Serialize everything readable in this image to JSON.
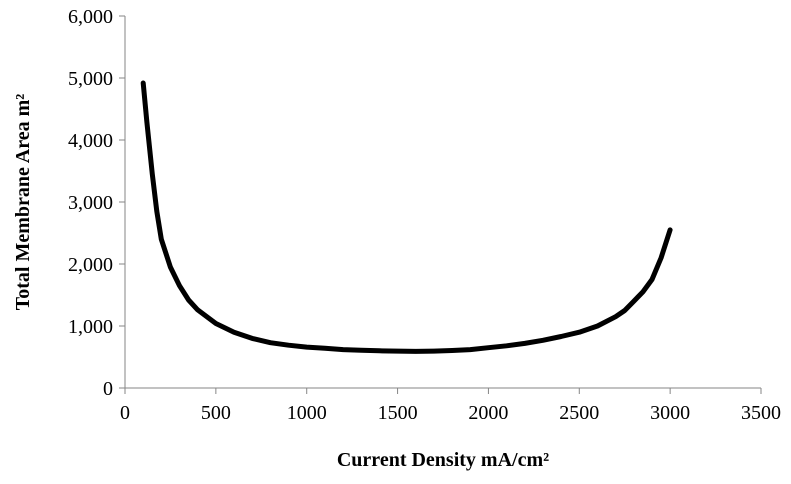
{
  "chart_data": {
    "type": "line",
    "title": "",
    "xlabel": "Current Density mA/cm²",
    "ylabel": "Total Membrane Area m²",
    "xlim": [
      0,
      3500
    ],
    "ylim": [
      0,
      6000
    ],
    "x_ticks": [
      0,
      500,
      1000,
      1500,
      2000,
      2500,
      3000,
      3500
    ],
    "x_tick_labels": [
      "0",
      "500",
      "1000",
      "1500",
      "2000",
      "2500",
      "3000",
      "3500"
    ],
    "y_ticks": [
      0,
      1000,
      2000,
      3000,
      4000,
      5000,
      6000
    ],
    "y_tick_labels": [
      "0",
      "1,000",
      "2,000",
      "3,000",
      "4,000",
      "5,000",
      "6,000"
    ],
    "grid": false,
    "legend": "none",
    "line_color": "#000000",
    "series": [
      {
        "x": [
          100,
          120,
          150,
          175,
          200,
          250,
          300,
          350,
          400,
          500,
          600,
          700,
          800,
          900,
          1000,
          1100,
          1200,
          1300,
          1400,
          1500,
          1600,
          1700,
          1800,
          1900,
          2000,
          2100,
          2200,
          2300,
          2400,
          2500,
          2600,
          2700,
          2750,
          2800,
          2850,
          2900,
          2950,
          3000
        ],
        "y": [
          4920,
          4300,
          3450,
          2850,
          2400,
          1950,
          1650,
          1420,
          1260,
          1040,
          900,
          800,
          730,
          690,
          660,
          640,
          620,
          610,
          600,
          595,
          590,
          595,
          605,
          620,
          650,
          680,
          720,
          770,
          830,
          900,
          1000,
          1150,
          1250,
          1400,
          1550,
          1750,
          2100,
          2550
        ]
      }
    ]
  }
}
